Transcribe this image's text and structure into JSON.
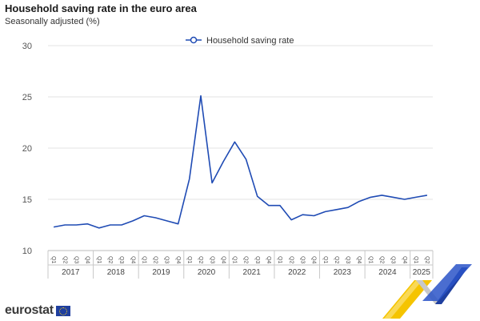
{
  "header": {
    "title": "Household saving rate in the euro area",
    "subtitle": "Seasonally adjusted (%)"
  },
  "logo": {
    "wordmark": "eurostat"
  },
  "chart_data": {
    "type": "line",
    "title": "Household saving rate in the euro area",
    "subtitle": "Seasonally adjusted (%)",
    "xlabel": "",
    "ylabel": "",
    "ylim": [
      10,
      30
    ],
    "yticks": [
      10,
      15,
      20,
      25,
      30
    ],
    "grid": true,
    "legend_position": "top",
    "quarter_labels": [
      "Q1",
      "Q2",
      "Q3",
      "Q4",
      "Q1",
      "Q2",
      "Q3",
      "Q4",
      "Q1",
      "Q2",
      "Q3",
      "Q4",
      "Q1",
      "Q2",
      "Q3",
      "Q4",
      "Q1",
      "Q2",
      "Q3",
      "Q4",
      "Q1",
      "Q2",
      "Q3",
      "Q4",
      "Q1",
      "Q2",
      "Q3",
      "Q4",
      "Q1",
      "Q2",
      "Q3",
      "Q4",
      "Q1",
      "Q2"
    ],
    "year_groups": [
      {
        "label": "2017",
        "quarters": 4
      },
      {
        "label": "2018",
        "quarters": 4
      },
      {
        "label": "2019",
        "quarters": 4
      },
      {
        "label": "2020",
        "quarters": 4
      },
      {
        "label": "2021",
        "quarters": 4
      },
      {
        "label": "2022",
        "quarters": 4
      },
      {
        "label": "2023",
        "quarters": 4
      },
      {
        "label": "2024",
        "quarters": 4
      },
      {
        "label": "2025",
        "quarters": 2
      }
    ],
    "series": [
      {
        "name": "Household saving rate",
        "color": "#1f4bb4",
        "values": [
          12.3,
          12.5,
          12.5,
          12.6,
          12.2,
          12.5,
          12.5,
          12.9,
          13.4,
          13.2,
          12.9,
          12.6,
          17.0,
          25.1,
          16.6,
          18.7,
          20.6,
          18.9,
          15.3,
          14.4,
          14.4,
          13.0,
          13.5,
          13.4,
          13.8,
          14.0,
          14.2,
          14.8,
          15.2,
          15.4,
          15.2,
          15.0,
          15.2,
          15.4
        ]
      }
    ]
  }
}
